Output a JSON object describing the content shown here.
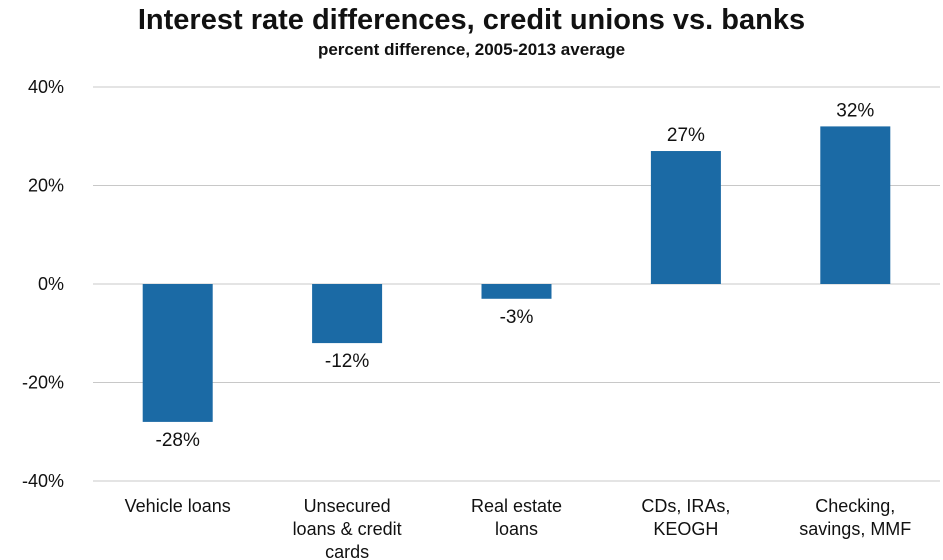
{
  "chart_data": {
    "type": "bar",
    "title": "Interest rate differences, credit unions vs. banks",
    "subtitle": "percent difference, 2005-2013 average",
    "xlabel": "",
    "ylabel": "",
    "categories": [
      [
        "Vehicle loans"
      ],
      [
        "Unsecured",
        "loans & credit",
        "cards"
      ],
      [
        "Real estate",
        "loans"
      ],
      [
        "CDs, IRAs,",
        "KEOGH"
      ],
      [
        "Checking,",
        "savings, MMF"
      ]
    ],
    "values": [
      -28,
      -12,
      -3,
      27,
      32
    ],
    "data_labels": [
      "-28%",
      "-12%",
      "-3%",
      "27%",
      "32%"
    ],
    "ylim": [
      -40,
      40
    ],
    "yticks": [
      40,
      20,
      0,
      -20,
      -40
    ],
    "ytick_labels": [
      "40%",
      "20%",
      "0%",
      "-20%",
      "-40%"
    ],
    "grid": true,
    "bar_color": "#1b6aa5",
    "grid_color": "#c8c8c8"
  }
}
